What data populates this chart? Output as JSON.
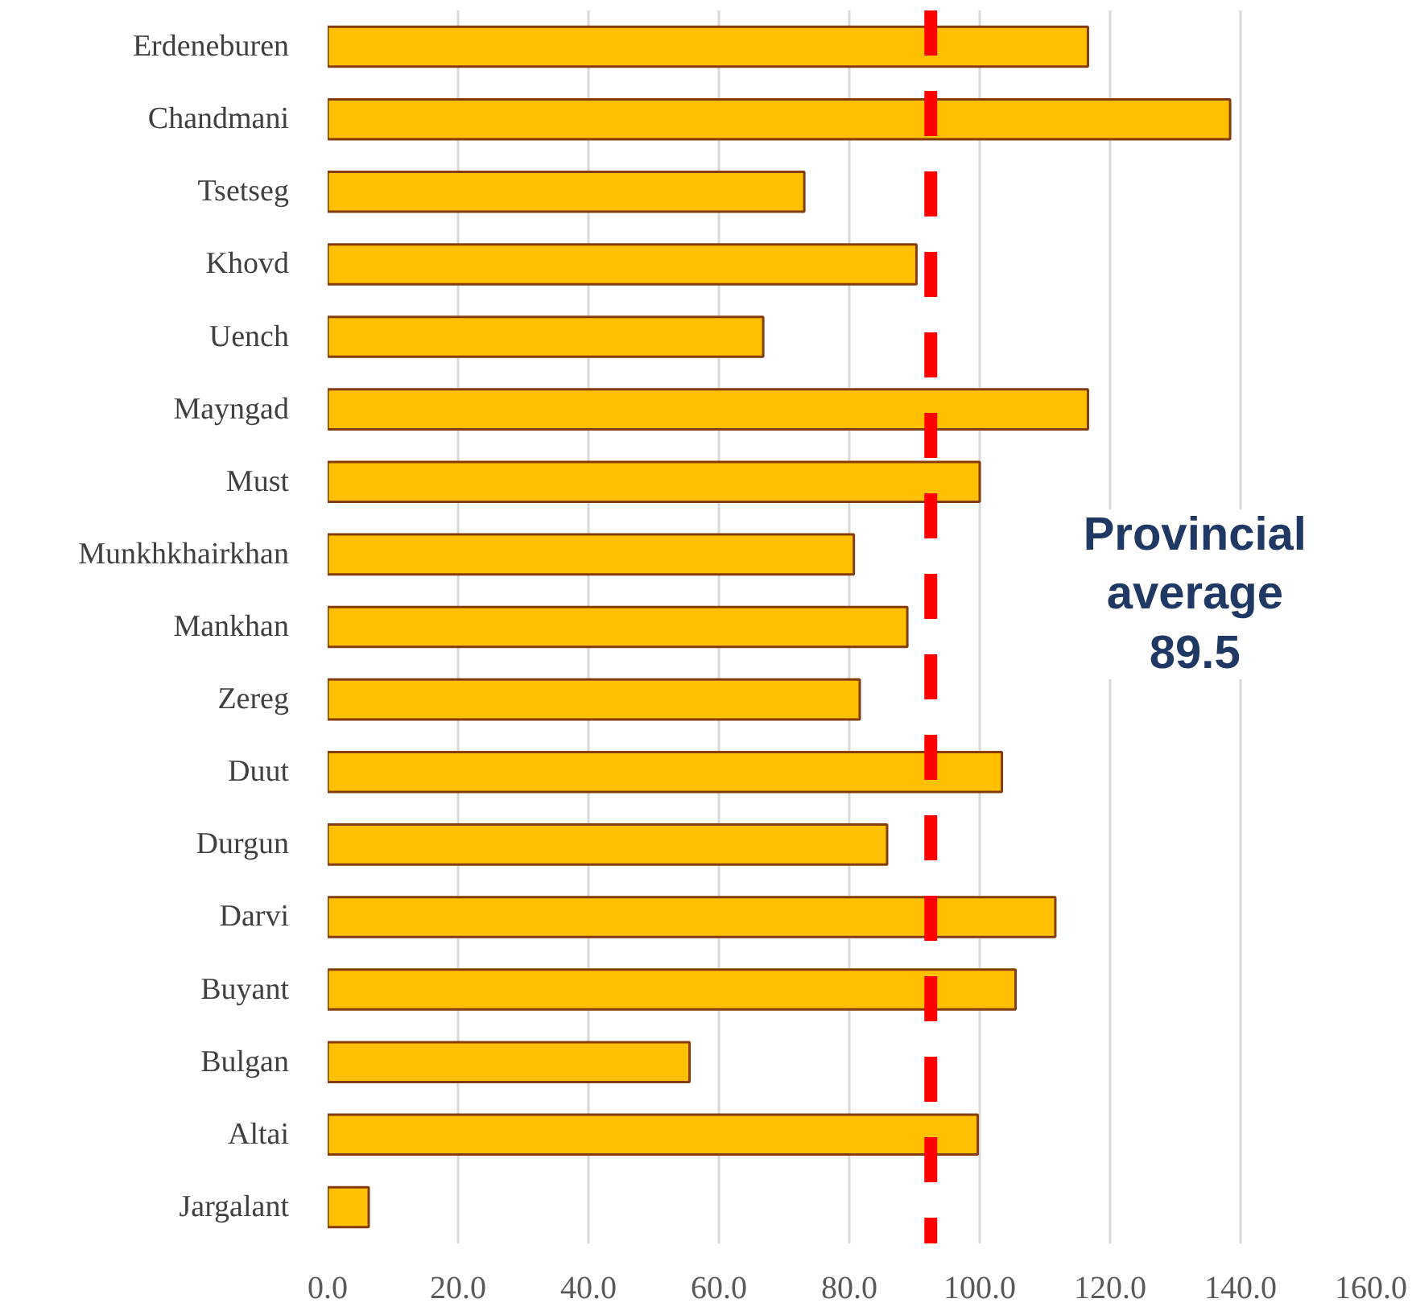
{
  "chart_data": {
    "type": "bar",
    "orientation": "horizontal",
    "categories": [
      "Erdeneburen",
      "Chandmani",
      "Tsetseg",
      "Khovd",
      "Uench",
      "Mayngad",
      "Must",
      "Munkhkhairkhan",
      "Mankhan",
      "Zereg",
      "Duut",
      "Durgun",
      "Darvi",
      "Buyant",
      "Bulgan",
      "Altai",
      "Jargalant"
    ],
    "values": [
      116.6,
      138.4,
      73.1,
      90.3,
      66.8,
      116.6,
      100.0,
      80.7,
      88.9,
      81.6,
      103.4,
      85.8,
      111.6,
      105.5,
      55.5,
      99.7,
      6.3
    ],
    "color": "#ffc000",
    "xlim": [
      0,
      160
    ],
    "xticks": [
      {
        "value": 0,
        "label": "0.0"
      },
      {
        "value": 20,
        "label": "20.0"
      },
      {
        "value": 40,
        "label": "40.0"
      },
      {
        "value": 60,
        "label": "60.0"
      },
      {
        "value": 80,
        "label": "80.0"
      },
      {
        "value": 100,
        "label": "100.0"
      },
      {
        "value": 120,
        "label": "120.0"
      },
      {
        "value": 140,
        "label": "140.0"
      },
      {
        "value": 160,
        "label": "160.0"
      }
    ],
    "grid": "x",
    "ref_lines": [
      {
        "axis": "x",
        "value": 92.5,
        "color": "#ff0000",
        "line_style": "dashed"
      }
    ],
    "annotations": [
      "Provincial\naverage\n89.5"
    ]
  }
}
